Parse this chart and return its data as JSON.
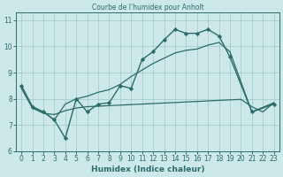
{
  "title": "Courbe de l'humidex pour Anholt",
  "xlabel": "Humidex (Indice chaleur)",
  "background_color": "#cce8e8",
  "line_color": "#2d6b6b",
  "xlim": [
    -0.5,
    23.5
  ],
  "ylim": [
    6.0,
    11.3
  ],
  "xticks": [
    0,
    1,
    2,
    3,
    4,
    5,
    6,
    7,
    8,
    9,
    10,
    11,
    12,
    13,
    14,
    15,
    16,
    17,
    18,
    19,
    20,
    21,
    22,
    23
  ],
  "yticks": [
    6,
    7,
    8,
    9,
    10,
    11
  ],
  "series_markers": {
    "x": [
      0,
      1,
      2,
      3,
      4,
      5,
      6,
      7,
      8,
      9,
      10,
      11,
      12,
      13,
      14,
      15,
      16,
      17,
      18,
      19,
      21,
      23
    ],
    "y": [
      8.5,
      7.7,
      7.5,
      7.2,
      6.5,
      8.0,
      7.5,
      7.8,
      7.85,
      8.5,
      8.4,
      9.5,
      9.8,
      10.25,
      10.65,
      10.5,
      10.5,
      10.65,
      10.4,
      9.6,
      7.5,
      7.8
    ]
  },
  "series_upper": {
    "x": [
      0,
      1,
      2,
      3,
      4,
      5,
      6,
      7,
      8,
      9,
      10,
      11,
      12,
      13,
      14,
      15,
      16,
      17,
      18,
      19,
      21,
      23
    ],
    "y": [
      8.5,
      7.7,
      7.5,
      7.2,
      7.8,
      8.0,
      8.1,
      8.25,
      8.35,
      8.55,
      8.85,
      9.1,
      9.35,
      9.55,
      9.75,
      9.85,
      9.9,
      10.05,
      10.15,
      9.8,
      7.5,
      7.85
    ]
  },
  "series_lower": {
    "x": [
      0,
      1,
      2,
      3,
      4,
      5,
      6,
      7,
      8,
      9,
      10,
      11,
      12,
      13,
      14,
      15,
      16,
      17,
      18,
      19,
      20,
      21,
      22,
      23
    ],
    "y": [
      8.4,
      7.65,
      7.45,
      7.4,
      7.55,
      7.65,
      7.7,
      7.72,
      7.74,
      7.76,
      7.78,
      7.8,
      7.82,
      7.84,
      7.86,
      7.88,
      7.9,
      7.92,
      7.94,
      7.96,
      7.98,
      7.7,
      7.5,
      7.85
    ]
  }
}
